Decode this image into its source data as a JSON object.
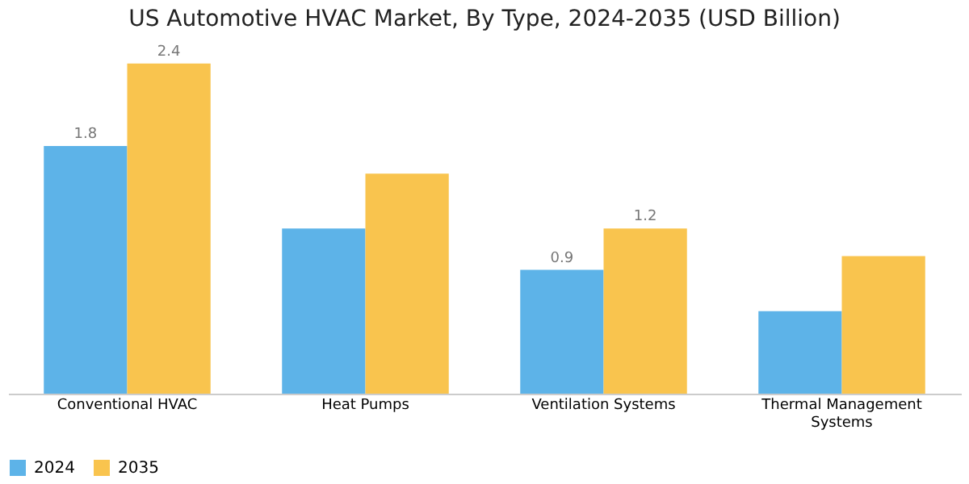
{
  "chart_data": {
    "type": "bar",
    "title": "US Automotive HVAC Market, By Type, 2024-2035 (USD Billion)",
    "categories": [
      "Conventional HVAC",
      "Heat Pumps",
      "Ventilation Systems",
      "Thermal Management Systems"
    ],
    "series": [
      {
        "name": "2024",
        "color": "#5db3e8",
        "values": [
          1.8,
          1.2,
          0.9,
          0.6
        ],
        "value_labels": [
          "1.8",
          null,
          "0.9",
          null
        ]
      },
      {
        "name": "2035",
        "color": "#f9c44e",
        "values": [
          2.4,
          1.6,
          1.2,
          1.0
        ],
        "value_labels": [
          "2.4",
          null,
          "1.2",
          null
        ]
      }
    ],
    "legend": "bottom",
    "grid": false
  }
}
